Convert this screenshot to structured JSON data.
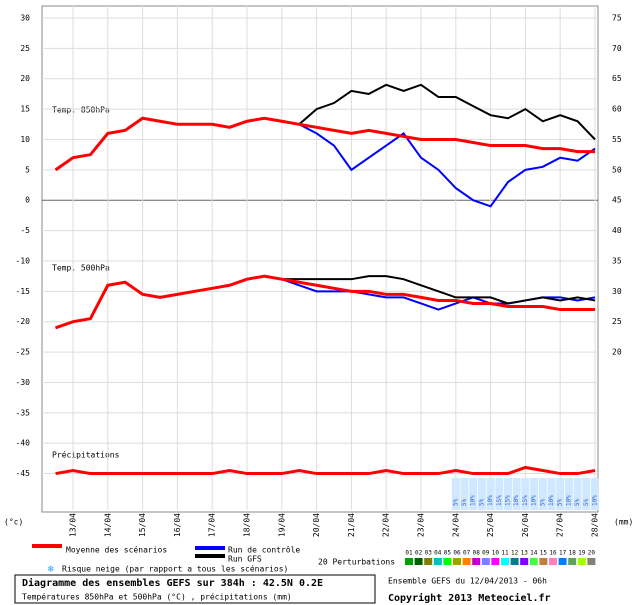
{
  "chart_data": {
    "type": "line",
    "panel_labels": [
      "Temp. 850hPa",
      "Temp. 500hPa",
      "Précipitations"
    ],
    "y_unit": "(°c)",
    "y2_unit": "(mm)",
    "categories": [
      null,
      "13/04",
      null,
      "14/04",
      null,
      "15/04",
      null,
      "16/04",
      null,
      "17/04",
      null,
      "18/04",
      null,
      "19/04",
      null,
      "20/04",
      null,
      "21/04",
      null,
      "22/04",
      null,
      "23/04",
      null,
      "24/04",
      null,
      "25/04",
      null,
      "26/04",
      null,
      "27/04",
      null,
      "28/04"
    ],
    "series": [
      {
        "name": "Moyenne des scénarios",
        "color": "#ff0000",
        "t850": [
          5,
          7,
          7.5,
          11,
          11.5,
          13.5,
          13,
          12.5,
          12.5,
          12.5,
          12,
          13,
          13.5,
          13,
          12.5,
          12,
          11.5,
          11,
          11.5,
          11,
          10.5,
          10,
          10,
          10,
          9.5,
          9,
          9,
          9,
          8.5,
          8.5,
          8,
          8
        ],
        "t500": [
          -21,
          -20,
          -19.5,
          -14,
          -13.5,
          -15.5,
          -16,
          -15.5,
          -15,
          -14.5,
          -14,
          -13,
          -12.5,
          -13,
          -13.5,
          -14,
          -14.5,
          -15,
          -15,
          -15.5,
          -15.5,
          -16,
          -16.5,
          -16.5,
          -17,
          -17,
          -17.5,
          -17.5,
          -17.5,
          -18,
          -18,
          -18
        ],
        "precip": [
          -45,
          -44.5,
          -45,
          -45,
          -45,
          -45,
          -45,
          -45,
          -45,
          -45,
          -44.5,
          -45,
          -45,
          -45,
          -44.5,
          -45,
          -45,
          -45,
          -45,
          -44.5,
          -45,
          -45,
          -45,
          -44.5,
          -45,
          -45,
          -45,
          -44,
          -44.5,
          -45,
          -45,
          -44.5
        ]
      },
      {
        "name": "Run de contrôle",
        "color": "#0000ff",
        "t850": [
          5,
          7,
          7.5,
          11,
          11.5,
          13.5,
          13,
          12.5,
          12.5,
          12.5,
          12,
          13,
          13.5,
          13,
          12.5,
          11,
          9,
          5,
          7,
          9,
          11,
          7,
          5,
          2,
          0,
          -1,
          3,
          5,
          5.5,
          7,
          6.5,
          8.5
        ],
        "t500": [
          -21,
          -20,
          -19.5,
          -14,
          -13.5,
          -15.5,
          -16,
          -15.5,
          -15,
          -14.5,
          -14,
          -13,
          -12.5,
          -13,
          -14,
          -15,
          -15,
          -15,
          -15.5,
          -16,
          -16,
          -17,
          -18,
          -17,
          -16,
          -17,
          -17,
          -16.5,
          -16,
          -16,
          -16.5,
          -16
        ]
      },
      {
        "name": "Run GFS",
        "color": "#000000",
        "t850": [
          5,
          7,
          7.5,
          11,
          11.5,
          13.5,
          13,
          12.5,
          12.5,
          12.5,
          12,
          13,
          13.5,
          13,
          12.5,
          15,
          16,
          18,
          17.5,
          19,
          18,
          19,
          17,
          17,
          15.5,
          14,
          13.5,
          15,
          13,
          14,
          13,
          10
        ],
        "t500": [
          -21,
          -20,
          -19.5,
          -14,
          -13.5,
          -15.5,
          -16,
          -15.5,
          -15,
          -14.5,
          -14,
          -13,
          -12.5,
          -13,
          -13,
          -13,
          -13,
          -13,
          -12.5,
          -12.5,
          -13,
          -14,
          -15,
          -16,
          -16,
          -16,
          -17,
          -16.5,
          -16,
          -16.5,
          -16,
          -16.5
        ]
      }
    ],
    "perturbations": {
      "label": "20 Perturbations",
      "members": [
        "01",
        "02",
        "03",
        "04",
        "05",
        "06",
        "07",
        "08",
        "09",
        "10",
        "11",
        "12",
        "13",
        "14",
        "15",
        "16",
        "17",
        "18",
        "19",
        "20"
      ],
      "colors": [
        "#00a000",
        "#006000",
        "#808000",
        "#00c0c0",
        "#00ff00",
        "#a0a000",
        "#ff8000",
        "#c000c0",
        "#8080ff",
        "#ff00ff",
        "#00ffff",
        "#008080",
        "#8000ff",
        "#40ff40",
        "#c08040",
        "#ff80c0",
        "#0080ff",
        "#60a060",
        "#a0ff00",
        "#808080"
      ]
    },
    "snow_risk": {
      "label": "Risque neige (par rapport a tous les scénarios)",
      "values": [
        5,
        5,
        10,
        5,
        10,
        15,
        15,
        10,
        15,
        10,
        5,
        10,
        5,
        10,
        5,
        5,
        10
      ],
      "value_labels": [
        "5%",
        "5%",
        "10%",
        "5%",
        "10%",
        "15%",
        "15%",
        "10%",
        "15%",
        "10%",
        "5%",
        "10%",
        "5%",
        "10%",
        "5%",
        "5%",
        "10%"
      ]
    },
    "ylim": [
      -51,
      30
    ],
    "yticks": [
      30,
      25,
      20,
      15,
      10,
      5,
      0,
      -5,
      -10,
      -15,
      -20,
      -25,
      -30,
      -35,
      -40,
      -45
    ],
    "y2lim": [
      -6,
      75
    ],
    "y2ticks": [
      75,
      70,
      65,
      60,
      55,
      50,
      45,
      40,
      35,
      30,
      25,
      20
    ],
    "grid": true,
    "footer": {
      "title": "Diagramme des ensembles GEFS sur 384h : 42.5N 0.2E",
      "subtitle": "Températures 850hPa et 500hPa (°C) , précipitations (mm)",
      "run": "Ensemble GEFS du 12/04/2013 - 06h",
      "copyright": "Copyright 2013 Meteociel.fr"
    }
  }
}
